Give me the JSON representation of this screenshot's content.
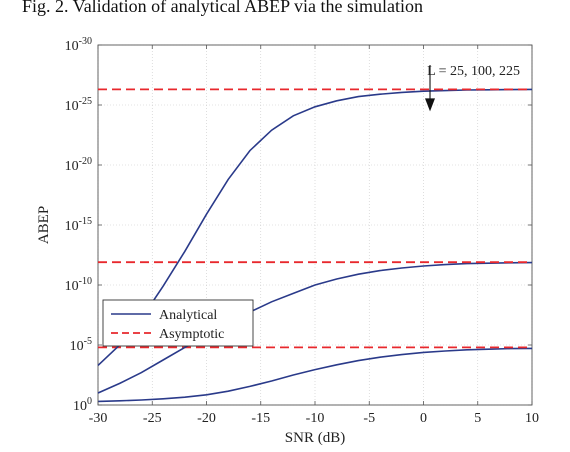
{
  "caption": "Fig. 2.  Validation of analytical ABEP via the simulation",
  "chart_data": {
    "type": "line",
    "xlabel": "SNR (dB)",
    "ylabel": "ABEP",
    "xlim": [
      -30,
      10
    ],
    "ylim_log10": [
      -30,
      0
    ],
    "yscale": "log",
    "grid": true,
    "x_ticks": [
      -30,
      -25,
      -20,
      -15,
      -10,
      -5,
      0,
      5,
      10
    ],
    "x_tick_labels": [
      "-30",
      "-25",
      "-20",
      "-15",
      "-10",
      "-5",
      "0",
      "5",
      "10"
    ],
    "y_ticks_log10": [
      0,
      -5,
      -10,
      -15,
      -20,
      -25,
      -30
    ],
    "legend": {
      "placement": "lower-left",
      "entries": [
        "Analytical",
        "Asymptotic"
      ]
    },
    "annotation": {
      "text": "L = 25, 100, 225",
      "arrow_x": 0.6
    },
    "colors": {
      "analytical": "#2a3a8a",
      "asymptotic": "#e8282d"
    },
    "series": [
      {
        "name": "Analytical",
        "style": "solid",
        "x": [
          -30,
          -28,
          -26,
          -24,
          -22,
          -20,
          -18,
          -16,
          -14,
          -12,
          -10,
          -8,
          -6,
          -4,
          -2,
          0,
          2,
          4,
          6,
          8,
          10
        ],
        "y_log10": [
          -0.3,
          -0.35,
          -0.42,
          -0.52,
          -0.65,
          -0.85,
          -1.15,
          -1.55,
          -2.0,
          -2.5,
          -2.95,
          -3.35,
          -3.7,
          -3.98,
          -4.2,
          -4.38,
          -4.5,
          -4.6,
          -4.65,
          -4.7,
          -4.72
        ]
      },
      {
        "name": "Asymptotic",
        "style": "dashed",
        "x": [
          -30,
          10
        ],
        "y_log10": [
          -4.8,
          -4.8
        ]
      },
      {
        "name": "Analytical",
        "style": "solid",
        "x": [
          -30,
          -28,
          -26,
          -24,
          -22,
          -20,
          -18,
          -16,
          -14,
          -12,
          -10,
          -8,
          -6,
          -4,
          -2,
          0,
          2,
          4,
          6,
          8,
          10
        ],
        "y_log10": [
          -1.0,
          -1.8,
          -2.7,
          -3.75,
          -4.8,
          -5.8,
          -6.8,
          -7.75,
          -8.6,
          -9.3,
          -10.0,
          -10.5,
          -10.9,
          -11.2,
          -11.42,
          -11.58,
          -11.7,
          -11.78,
          -11.82,
          -11.85,
          -11.87
        ]
      },
      {
        "name": "Asymptotic",
        "style": "dashed",
        "x": [
          -30,
          10
        ],
        "y_log10": [
          -11.9,
          -11.9
        ]
      },
      {
        "name": "Analytical",
        "style": "solid",
        "x": [
          -30,
          -28,
          -26,
          -24,
          -22,
          -20,
          -18,
          -16,
          -14,
          -12,
          -10,
          -8,
          -6,
          -4,
          -2,
          0,
          2,
          4,
          6,
          8,
          10
        ],
        "y_log10": [
          -3.3,
          -5.0,
          -7.2,
          -9.9,
          -12.8,
          -15.9,
          -18.8,
          -21.2,
          -22.9,
          -24.1,
          -24.85,
          -25.35,
          -25.7,
          -25.9,
          -26.05,
          -26.15,
          -26.2,
          -26.25,
          -26.27,
          -26.28,
          -26.3
        ]
      },
      {
        "name": "Asymptotic",
        "style": "dashed",
        "x": [
          -30,
          10
        ],
        "y_log10": [
          -26.3,
          -26.3
        ]
      }
    ]
  }
}
